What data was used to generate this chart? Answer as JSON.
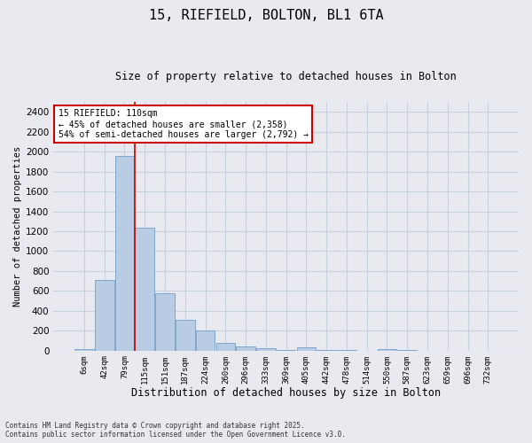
{
  "title1": "15, RIEFIELD, BOLTON, BL1 6TA",
  "title2": "Size of property relative to detached houses in Bolton",
  "xlabel": "Distribution of detached houses by size in Bolton",
  "ylabel": "Number of detached properties",
  "categories": [
    "6sqm",
    "42sqm",
    "79sqm",
    "115sqm",
    "151sqm",
    "187sqm",
    "224sqm",
    "260sqm",
    "296sqm",
    "333sqm",
    "369sqm",
    "405sqm",
    "442sqm",
    "478sqm",
    "514sqm",
    "550sqm",
    "587sqm",
    "623sqm",
    "659sqm",
    "696sqm",
    "732sqm"
  ],
  "values": [
    15,
    710,
    1960,
    1235,
    580,
    305,
    200,
    75,
    40,
    28,
    5,
    30,
    5,
    2,
    0,
    14,
    2,
    0,
    0,
    0,
    0
  ],
  "bar_color": "#b8cce4",
  "bar_edge_color": "#7fa7cc",
  "grid_color": "#c8d0e0",
  "background_color": "#e8eaf0",
  "vline_color": "#cc0000",
  "vline_x_index": 3,
  "annotation_text": "15 RIEFIELD: 110sqm\n← 45% of detached houses are smaller (2,358)\n54% of semi-detached houses are larger (2,792) →",
  "annotation_box_color": "#ffffff",
  "annotation_box_edge": "#cc0000",
  "ylim": [
    0,
    2500
  ],
  "yticks": [
    0,
    200,
    400,
    600,
    800,
    1000,
    1200,
    1400,
    1600,
    1800,
    2000,
    2200,
    2400
  ],
  "footnote": "Contains HM Land Registry data © Crown copyright and database right 2025.\nContains public sector information licensed under the Open Government Licence v3.0."
}
